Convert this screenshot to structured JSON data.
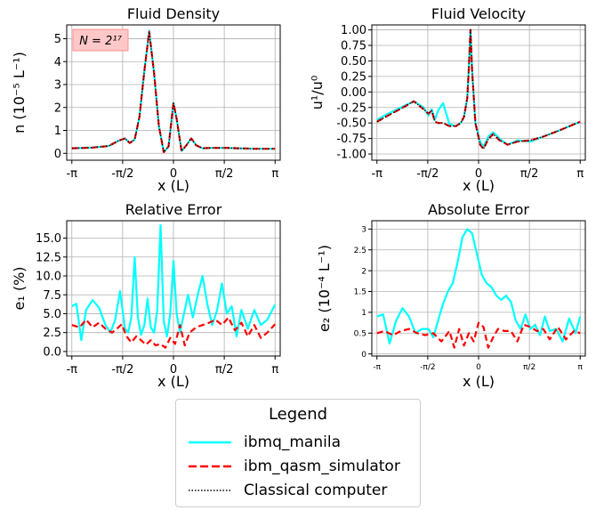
{
  "chart_data": [
    {
      "id": "density",
      "type": "line",
      "title": "Fluid Density",
      "xlabel": "x (L)",
      "ylabel": "n (10⁻⁵ L⁻¹)",
      "xlim": [
        -3.3,
        3.3
      ],
      "ylim": [
        -0.3,
        5.6
      ],
      "yticks": [
        0,
        1,
        2,
        3,
        4,
        5
      ],
      "ytick_labels": [
        "0",
        "1",
        "2",
        "3",
        "4",
        "5"
      ],
      "xticks": [
        -3.1416,
        -1.5708,
        0,
        1.5708,
        3.1416
      ],
      "xtick_labels": [
        "-π",
        "-π/2",
        "0",
        "π/2",
        "π"
      ],
      "annotation": "N = 2¹⁷",
      "grid": true,
      "series": [
        {
          "name": "ibmq_manila",
          "x": [
            -3.14,
            -2.5,
            -2.0,
            -1.7,
            -1.5,
            -1.35,
            -1.2,
            -1.05,
            -0.9,
            -0.75,
            -0.6,
            -0.45,
            -0.3,
            -0.15,
            0,
            0.1,
            0.25,
            0.4,
            0.55,
            0.7,
            0.9,
            1.2,
            1.6,
            2.0,
            2.5,
            3.14
          ],
          "y": [
            0.22,
            0.25,
            0.32,
            0.55,
            0.65,
            0.45,
            0.6,
            1.6,
            3.6,
            5.35,
            3.5,
            1.2,
            0.05,
            0.3,
            2.2,
            1.5,
            0.1,
            0.35,
            0.65,
            0.35,
            0.22,
            0.24,
            0.24,
            0.22,
            0.2,
            0.2
          ]
        },
        {
          "name": "ibm_qasm_simulator",
          "x": [
            -3.14,
            -2.5,
            -2.0,
            -1.7,
            -1.5,
            -1.35,
            -1.2,
            -1.05,
            -0.9,
            -0.75,
            -0.6,
            -0.45,
            -0.3,
            -0.15,
            0,
            0.1,
            0.25,
            0.4,
            0.55,
            0.7,
            0.9,
            1.2,
            1.6,
            2.0,
            2.5,
            3.14
          ],
          "y": [
            0.22,
            0.25,
            0.32,
            0.55,
            0.65,
            0.45,
            0.6,
            1.6,
            3.6,
            5.3,
            3.5,
            1.2,
            0.05,
            0.3,
            2.2,
            1.5,
            0.1,
            0.35,
            0.65,
            0.35,
            0.22,
            0.24,
            0.24,
            0.22,
            0.2,
            0.2
          ]
        },
        {
          "name": "Classical computer",
          "x": [
            -3.14,
            -2.5,
            -2.0,
            -1.7,
            -1.5,
            -1.35,
            -1.2,
            -1.05,
            -0.9,
            -0.75,
            -0.6,
            -0.45,
            -0.3,
            -0.15,
            0,
            0.1,
            0.25,
            0.4,
            0.55,
            0.7,
            0.9,
            1.2,
            1.6,
            2.0,
            2.5,
            3.14
          ],
          "y": [
            0.22,
            0.25,
            0.32,
            0.55,
            0.65,
            0.45,
            0.6,
            1.6,
            3.6,
            5.3,
            3.5,
            1.2,
            0.05,
            0.3,
            2.2,
            1.5,
            0.1,
            0.35,
            0.65,
            0.35,
            0.22,
            0.24,
            0.24,
            0.22,
            0.2,
            0.2
          ]
        }
      ]
    },
    {
      "id": "velocity",
      "type": "line",
      "title": "Fluid Velocity",
      "xlabel": "x (L)",
      "ylabel": "u¹/u⁰",
      "xlim": [
        -3.3,
        3.3
      ],
      "ylim": [
        -1.1,
        1.08
      ],
      "yticks": [
        -1.0,
        -0.75,
        -0.5,
        -0.25,
        0.0,
        0.25,
        0.5,
        0.75,
        1.0
      ],
      "ytick_labels": [
        "-1.00",
        "-0.75",
        "-0.50",
        "-0.25",
        "0.00",
        "0.25",
        "0.50",
        "0.75",
        "1.00"
      ],
      "xticks": [
        -3.1416,
        -1.5708,
        0,
        1.5708,
        3.1416
      ],
      "xtick_labels": [
        "-π",
        "-π/2",
        "0",
        "π/2",
        "π"
      ],
      "grid": true,
      "series": [
        {
          "name": "ibmq_manila",
          "x": [
            -3.14,
            -2.8,
            -2.4,
            -2.0,
            -1.7,
            -1.55,
            -1.45,
            -1.35,
            -1.25,
            -1.1,
            -0.9,
            -0.7,
            -0.55,
            -0.45,
            -0.35,
            -0.3,
            -0.25,
            -0.2,
            -0.1,
            0.05,
            0.15,
            0.3,
            0.45,
            0.65,
            0.9,
            1.2,
            1.6,
            2.0,
            2.5,
            3.14
          ],
          "y": [
            -0.45,
            -0.35,
            -0.25,
            -0.15,
            -0.25,
            -0.38,
            -0.28,
            -0.45,
            -0.3,
            -0.18,
            -0.52,
            -0.55,
            -0.5,
            -0.4,
            -0.1,
            0.4,
            1.0,
            0.35,
            -0.5,
            -0.8,
            -0.88,
            -0.72,
            -0.65,
            -0.75,
            -0.85,
            -0.78,
            -0.8,
            -0.72,
            -0.62,
            -0.48
          ]
        },
        {
          "name": "ibm_qasm_simulator",
          "x": [
            -3.14,
            -2.8,
            -2.4,
            -2.0,
            -1.7,
            -1.55,
            -1.45,
            -1.35,
            -1.25,
            -1.1,
            -0.9,
            -0.7,
            -0.55,
            -0.45,
            -0.35,
            -0.3,
            -0.25,
            -0.2,
            -0.1,
            0.05,
            0.15,
            0.3,
            0.45,
            0.65,
            0.9,
            1.2,
            1.6,
            2.0,
            2.5,
            3.14
          ],
          "y": [
            -0.48,
            -0.38,
            -0.27,
            -0.15,
            -0.28,
            -0.35,
            -0.3,
            -0.48,
            -0.5,
            -0.5,
            -0.55,
            -0.55,
            -0.5,
            -0.4,
            -0.1,
            0.4,
            1.0,
            0.35,
            -0.5,
            -0.85,
            -0.92,
            -0.76,
            -0.68,
            -0.78,
            -0.85,
            -0.8,
            -0.78,
            -0.72,
            -0.62,
            -0.48
          ]
        },
        {
          "name": "Classical computer",
          "x": [
            -3.14,
            -2.8,
            -2.4,
            -2.0,
            -1.7,
            -1.55,
            -1.45,
            -1.35,
            -1.25,
            -1.1,
            -0.9,
            -0.7,
            -0.55,
            -0.45,
            -0.35,
            -0.3,
            -0.25,
            -0.2,
            -0.1,
            0.05,
            0.15,
            0.3,
            0.45,
            0.65,
            0.9,
            1.2,
            1.6,
            2.0,
            2.5,
            3.14
          ],
          "y": [
            -0.48,
            -0.38,
            -0.27,
            -0.15,
            -0.28,
            -0.35,
            -0.3,
            -0.48,
            -0.5,
            -0.5,
            -0.55,
            -0.55,
            -0.5,
            -0.4,
            -0.1,
            0.4,
            1.0,
            0.35,
            -0.5,
            -0.85,
            -0.92,
            -0.76,
            -0.68,
            -0.78,
            -0.85,
            -0.8,
            -0.78,
            -0.72,
            -0.62,
            -0.48
          ]
        }
      ]
    },
    {
      "id": "relerr",
      "type": "line",
      "title": "Relative Error",
      "xlabel": "x (L)",
      "ylabel": "e₁ (%)",
      "xlim": [
        -3.3,
        3.3
      ],
      "ylim": [
        -0.6,
        17.3
      ],
      "yticks": [
        0.0,
        2.5,
        5.0,
        7.5,
        10.0,
        12.5,
        15.0
      ],
      "ytick_labels": [
        "0.0",
        "2.5",
        "5.0",
        "7.5",
        "10.0",
        "12.5",
        "15.0"
      ],
      "xticks": [
        -3.1416,
        -1.5708,
        0,
        1.5708,
        3.1416
      ],
      "xtick_labels": [
        "-π",
        "-π/2",
        "0",
        "π/2",
        "π"
      ],
      "grid": true,
      "series": [
        {
          "name": "ibmq_manila",
          "x": [
            -3.14,
            -3.0,
            -2.85,
            -2.7,
            -2.5,
            -2.3,
            -2.1,
            -1.95,
            -1.8,
            -1.65,
            -1.5,
            -1.4,
            -1.3,
            -1.2,
            -1.1,
            -1.0,
            -0.9,
            -0.8,
            -0.7,
            -0.6,
            -0.5,
            -0.4,
            -0.3,
            -0.2,
            -0.1,
            0,
            0.1,
            0.2,
            0.3,
            0.45,
            0.6,
            0.75,
            0.9,
            1.05,
            1.2,
            1.35,
            1.5,
            1.65,
            1.8,
            1.95,
            2.1,
            2.3,
            2.5,
            2.7,
            2.9,
            3.14
          ],
          "y": [
            6.0,
            6.3,
            1.5,
            5.5,
            6.8,
            5.8,
            3.5,
            2.5,
            4.2,
            8.0,
            3.0,
            2.5,
            4.5,
            12.5,
            4.5,
            2.2,
            3.5,
            7.0,
            3.2,
            2.5,
            5.5,
            16.7,
            4.0,
            2.0,
            5.0,
            12.0,
            5.0,
            2.5,
            4.5,
            7.5,
            4.5,
            7.5,
            10.0,
            6.2,
            3.5,
            5.5,
            9.0,
            5.0,
            6.0,
            2.0,
            5.5,
            3.0,
            5.5,
            3.5,
            4.2,
            6.2
          ]
        },
        {
          "name": "ibm_qasm_simulator",
          "x": [
            -3.14,
            -2.9,
            -2.7,
            -2.5,
            -2.3,
            -2.1,
            -1.9,
            -1.75,
            -1.6,
            -1.45,
            -1.3,
            -1.15,
            -1.0,
            -0.85,
            -0.7,
            -0.55,
            -0.4,
            -0.25,
            -0.1,
            0.05,
            0.2,
            0.35,
            0.5,
            0.7,
            0.9,
            1.1,
            1.3,
            1.5,
            1.7,
            1.9,
            2.1,
            2.3,
            2.5,
            2.7,
            2.9,
            3.14
          ],
          "y": [
            3.5,
            3.2,
            4.2,
            3.2,
            3.8,
            3.0,
            2.5,
            3.0,
            3.6,
            2.0,
            1.2,
            2.0,
            1.5,
            0.9,
            1.5,
            0.8,
            1.0,
            0.5,
            1.8,
            1.0,
            3.5,
            0.8,
            2.5,
            3.2,
            3.5,
            3.8,
            4.2,
            3.5,
            4.5,
            2.8,
            3.8,
            2.0,
            3.5,
            1.8,
            2.5,
            3.6
          ]
        },
        {
          "name": "Classical computer",
          "x": [],
          "y": []
        }
      ]
    },
    {
      "id": "abserr",
      "type": "line",
      "title": "Absolute Error",
      "xlabel": "x (L)",
      "ylabel": "e₂ (10⁻⁴ L⁻¹)",
      "xlim": [
        -3.3,
        3.3
      ],
      "ylim": [
        -0.05,
        3.2
      ],
      "yticks": [
        0,
        0.5,
        1,
        1.5,
        2,
        2.5,
        3
      ],
      "ytick_labels": [
        "0",
        "0.5",
        "1",
        "1.5",
        "2",
        "2.5",
        "3"
      ],
      "xticks": [
        -3.1416,
        -1.5708,
        0,
        1.5708,
        3.1416
      ],
      "xtick_labels": [
        "-π",
        "-π/2",
        "0",
        "π/2",
        "π"
      ],
      "grid": true,
      "series": [
        {
          "name": "ibmq_manila",
          "x": [
            -3.14,
            -2.95,
            -2.75,
            -2.55,
            -2.35,
            -2.15,
            -1.95,
            -1.75,
            -1.55,
            -1.4,
            -1.25,
            -1.1,
            -0.95,
            -0.8,
            -0.65,
            -0.5,
            -0.35,
            -0.2,
            -0.05,
            0.1,
            0.25,
            0.4,
            0.55,
            0.7,
            0.85,
            1.0,
            1.15,
            1.3,
            1.45,
            1.6,
            1.75,
            1.9,
            2.05,
            2.2,
            2.4,
            2.6,
            2.8,
            3.0,
            3.14
          ],
          "y": [
            0.9,
            0.95,
            0.25,
            0.8,
            1.1,
            0.9,
            0.5,
            0.6,
            0.6,
            0.4,
            0.8,
            1.2,
            1.5,
            1.7,
            2.2,
            2.8,
            3.0,
            2.9,
            2.4,
            1.9,
            1.7,
            1.6,
            1.4,
            1.3,
            1.4,
            1.25,
            0.8,
            0.6,
            0.95,
            0.6,
            0.7,
            0.45,
            0.9,
            0.55,
            0.6,
            0.3,
            0.85,
            0.5,
            0.9
          ]
        },
        {
          "name": "ibm_qasm_simulator",
          "x": [
            -3.14,
            -2.9,
            -2.65,
            -2.4,
            -2.15,
            -1.9,
            -1.65,
            -1.4,
            -1.15,
            -0.9,
            -0.75,
            -0.6,
            -0.45,
            -0.3,
            -0.15,
            0,
            0.15,
            0.3,
            0.45,
            0.6,
            0.8,
            1.0,
            1.2,
            1.4,
            1.6,
            1.8,
            2.0,
            2.2,
            2.45,
            2.7,
            2.95,
            3.14
          ],
          "y": [
            0.5,
            0.55,
            0.45,
            0.55,
            0.6,
            0.5,
            0.45,
            0.5,
            0.3,
            0.55,
            0.15,
            0.6,
            0.2,
            0.5,
            0.3,
            0.75,
            0.65,
            0.15,
            0.4,
            0.6,
            0.55,
            0.55,
            0.3,
            0.7,
            0.65,
            0.55,
            0.6,
            0.35,
            0.65,
            0.35,
            0.55,
            0.5
          ]
        },
        {
          "name": "Classical computer",
          "x": [],
          "y": []
        }
      ]
    }
  ],
  "legend": {
    "title": "Legend",
    "entries": [
      {
        "label": "ibmq_manila",
        "color": "#00ffff",
        "style": "solid"
      },
      {
        "label": "ibm_qasm_simulator",
        "color": "#ff0000",
        "style": "dashed"
      },
      {
        "label": "Classical computer",
        "color": "#000000",
        "style": "dotted"
      }
    ]
  },
  "colors": {
    "manila": "#00ffff",
    "qasm": "#ff0000",
    "classical": "#000000",
    "annotation_box": "#ffc8c8",
    "annotation_border": "#ff9090"
  }
}
